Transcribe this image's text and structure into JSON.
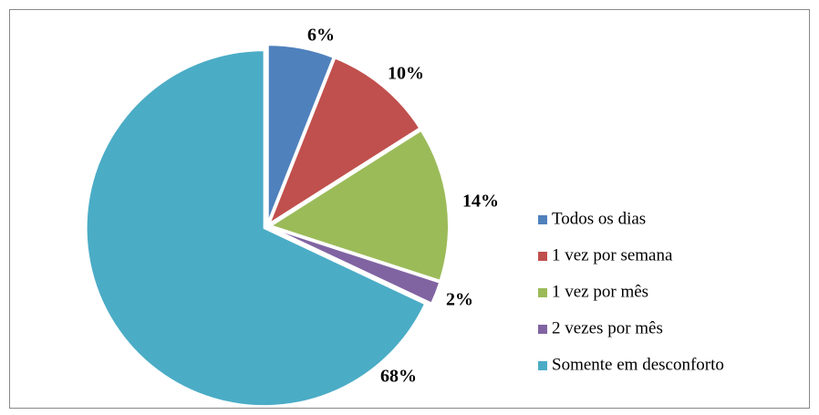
{
  "chart_data": {
    "type": "pie",
    "categories": [
      "Todos os dias",
      "1 vez por semana",
      "1 vez por mês",
      "2 vezes por mês",
      "Somente em desconforto"
    ],
    "values": [
      6,
      10,
      14,
      2,
      68
    ],
    "value_labels": [
      "6%",
      "10%",
      "14%",
      "2%",
      "68%"
    ],
    "colors": [
      "#4f81bd",
      "#c0504d",
      "#9bbb59",
      "#8064a2",
      "#4bacc6"
    ],
    "legend": "right"
  }
}
